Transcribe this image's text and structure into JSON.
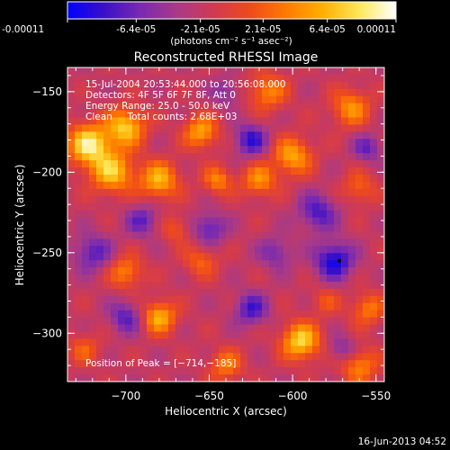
{
  "colorbar": {
    "tick_labels": [
      "-0.00011",
      "-6.4e-05",
      "-2.1e-05",
      "2.1e-05",
      "6.4e-05",
      "0.00011"
    ],
    "unit_label": "(photons cm⁻² s⁻¹ asec⁻²)",
    "range": [
      -0.00011,
      0.00011
    ],
    "colors": [
      "#0000ff",
      "#3a10c8",
      "#7a2ab0",
      "#a93a86",
      "#d03a52",
      "#ee4a1c",
      "#ff7a00",
      "#ffb000",
      "#ffe85a",
      "#ffffff"
    ]
  },
  "chart_data": {
    "type": "heatmap",
    "title": "Reconstructed RHESSI Image",
    "xlabel": "Heliocentric X (arcsec)",
    "ylabel": "Heliocentric Y (arcsec)",
    "xlim": [
      -735,
      -545
    ],
    "ylim": [
      -330,
      -135
    ],
    "x_ticks": [
      -700,
      -650,
      -600,
      -550
    ],
    "y_ticks": [
      -150,
      -200,
      -250,
      -300
    ],
    "x_tick_labels": [
      "−700",
      "−650",
      "−600",
      "−550"
    ],
    "y_tick_labels": [
      "−150",
      "−200",
      "−250",
      "−300"
    ],
    "annotations": [
      "15-Jul-2004 20:53:44.000 to 20:56:08.000",
      "Detectors: 4F 5F 6F 7F 8F, Att 0",
      "Energy Range: 25.0 - 50.0 keV",
      "Clean     Total counts: 2.68E+03"
    ],
    "peak_label": "Position of Peak = [−714,−185]",
    "peak": [
      -714,
      -185
    ],
    "marker": [
      -572,
      -255
    ],
    "blobs": [
      {
        "x": -722,
        "y": -183,
        "v": 1.0,
        "s": 9
      },
      {
        "x": -700,
        "y": -172,
        "v": 0.85,
        "s": 8
      },
      {
        "x": -708,
        "y": -200,
        "v": 0.8,
        "s": 9
      },
      {
        "x": -680,
        "y": -205,
        "v": 0.75,
        "s": 8
      },
      {
        "x": -655,
        "y": -175,
        "v": 0.7,
        "s": 7
      },
      {
        "x": -645,
        "y": -205,
        "v": 0.55,
        "s": 6
      },
      {
        "x": -620,
        "y": -205,
        "v": 0.6,
        "s": 7
      },
      {
        "x": -600,
        "y": -190,
        "v": 0.7,
        "s": 8
      },
      {
        "x": -615,
        "y": -150,
        "v": 0.55,
        "s": 8
      },
      {
        "x": -565,
        "y": -160,
        "v": 0.6,
        "s": 8
      },
      {
        "x": -560,
        "y": -210,
        "v": 0.4,
        "s": 7
      },
      {
        "x": -680,
        "y": -290,
        "v": 0.75,
        "s": 7
      },
      {
        "x": -700,
        "y": -262,
        "v": 0.55,
        "s": 7
      },
      {
        "x": -640,
        "y": -320,
        "v": 0.5,
        "s": 7
      },
      {
        "x": -595,
        "y": -305,
        "v": 0.9,
        "s": 8
      },
      {
        "x": -560,
        "y": -320,
        "v": 0.55,
        "s": 8
      },
      {
        "x": -555,
        "y": -285,
        "v": 0.5,
        "s": 7
      },
      {
        "x": -580,
        "y": -280,
        "v": 0.3,
        "s": 6
      },
      {
        "x": -725,
        "y": -310,
        "v": 0.35,
        "s": 7
      },
      {
        "x": -655,
        "y": -255,
        "v": 0.4,
        "s": 7
      },
      {
        "x": -670,
        "y": -235,
        "v": 0.35,
        "s": 6
      },
      {
        "x": -575,
        "y": -255,
        "v": -0.75,
        "s": 8
      },
      {
        "x": -585,
        "y": -225,
        "v": -0.55,
        "s": 8
      },
      {
        "x": -625,
        "y": -180,
        "v": -0.6,
        "s": 7
      },
      {
        "x": -650,
        "y": -235,
        "v": -0.5,
        "s": 7
      },
      {
        "x": -690,
        "y": -230,
        "v": -0.45,
        "s": 7
      },
      {
        "x": -720,
        "y": -250,
        "v": -0.5,
        "s": 8
      },
      {
        "x": -700,
        "y": -290,
        "v": -0.5,
        "s": 7
      },
      {
        "x": -625,
        "y": -285,
        "v": -0.55,
        "s": 7
      },
      {
        "x": -610,
        "y": -250,
        "v": -0.4,
        "s": 7
      },
      {
        "x": -555,
        "y": -185,
        "v": -0.45,
        "s": 6
      },
      {
        "x": -640,
        "y": -150,
        "v": -0.35,
        "s": 6
      },
      {
        "x": -570,
        "y": -310,
        "v": -0.4,
        "s": 6
      }
    ]
  },
  "footer": {
    "timestamp": "16-Jun-2013 04:52"
  }
}
